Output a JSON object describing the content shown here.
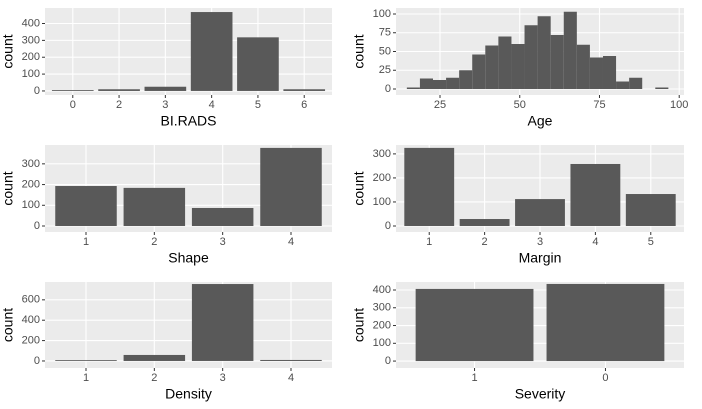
{
  "chart_data": [
    {
      "type": "bar",
      "x_label": "BI.RADS",
      "y_label": "count",
      "categories": [
        "0",
        "2",
        "3",
        "4",
        "5",
        "6"
      ],
      "values": [
        5,
        10,
        25,
        468,
        318,
        10
      ],
      "color": "#595959",
      "ylim": [
        -24,
        492
      ],
      "yticks": [
        0,
        100,
        200,
        300,
        400
      ],
      "grid": true
    },
    {
      "type": "histogram",
      "x_label": "Age",
      "y_label": "count",
      "bins": [
        14.6,
        18.7,
        22.8,
        26.9,
        31.0,
        35.1,
        39.2,
        43.3,
        47.4,
        51.5,
        55.6,
        59.7,
        63.8,
        67.9,
        72.0,
        76.1,
        80.2,
        84.3,
        88.4,
        92.5,
        96.6
      ],
      "values": [
        2,
        14,
        12,
        15,
        25,
        46,
        58,
        70,
        60,
        85,
        97,
        72,
        103,
        59,
        42,
        44,
        10,
        15,
        0,
        2
      ],
      "color": "#595959",
      "xlim": [
        11.2,
        101.5
      ],
      "xticks": [
        25,
        50,
        75,
        100
      ],
      "ylim": [
        -8,
        108
      ],
      "yticks": [
        0,
        25,
        50,
        75,
        100
      ],
      "grid": true
    },
    {
      "type": "bar",
      "x_label": "Shape",
      "y_label": "count",
      "categories": [
        "1",
        "2",
        "3",
        "4"
      ],
      "values": [
        193,
        184,
        87,
        377
      ],
      "color": "#595959",
      "ylim": [
        -29,
        391
      ],
      "yticks": [
        0,
        100,
        200,
        300
      ],
      "grid": true
    },
    {
      "type": "bar",
      "x_label": "Margin",
      "y_label": "count",
      "categories": [
        "1",
        "2",
        "3",
        "4",
        "5"
      ],
      "values": [
        325,
        29,
        112,
        258,
        133
      ],
      "color": "#595959",
      "ylim": [
        -25,
        337
      ],
      "yticks": [
        0,
        100,
        200,
        300
      ],
      "grid": true
    },
    {
      "type": "bar",
      "x_label": "Density",
      "y_label": "count",
      "categories": [
        "1",
        "2",
        "3",
        "4"
      ],
      "values": [
        8,
        59,
        755,
        10
      ],
      "color": "#595959",
      "ylim": [
        -69,
        775
      ],
      "yticks": [
        0,
        200,
        400,
        600
      ],
      "grid": true
    },
    {
      "type": "bar",
      "x_label": "Severity",
      "y_label": "count",
      "categories": [
        "1",
        "0"
      ],
      "values": [
        406,
        434
      ],
      "color": "#595959",
      "ylim": [
        -39,
        445
      ],
      "yticks": [
        0,
        100,
        200,
        300,
        400
      ],
      "grid": true
    }
  ]
}
